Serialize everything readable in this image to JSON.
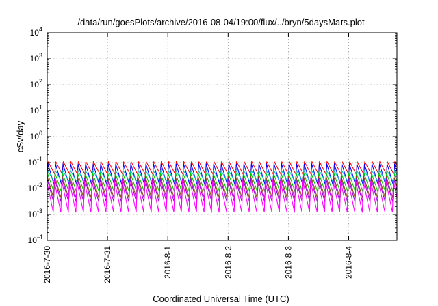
{
  "chart_data": {
    "type": "line",
    "title": "/data/run/goesPlots/archive/2016-08-04/19:00/flux/../bryn/5daysMars.plot",
    "xlabel": "Coordinated Universal Time (UTC)",
    "ylabel": "cSv/day",
    "yscale": "log",
    "ylim_exponents": [
      -4,
      4
    ],
    "y_ticks": [
      {
        "base": "10",
        "exp": "4"
      },
      {
        "base": "10",
        "exp": "3"
      },
      {
        "base": "10",
        "exp": "2"
      },
      {
        "base": "10",
        "exp": "1"
      },
      {
        "base": "10",
        "exp": "0"
      },
      {
        "base": "10",
        "exp": "-1"
      },
      {
        "base": "10",
        "exp": "-2"
      },
      {
        "base": "10",
        "exp": "-3"
      },
      {
        "base": "10",
        "exp": "-4"
      }
    ],
    "x_ticks": [
      "2016-7-30",
      "2016-7-31",
      "2016-8-1",
      "2016-8-2",
      "2016-8-3",
      "2016-8-4"
    ],
    "xlim_days": [
      0,
      5.8
    ],
    "grid": true,
    "legend": "none",
    "cycles_per_day": 8,
    "series": [
      {
        "color": "#ff0000",
        "peak": 0.11,
        "trough": 0.035
      },
      {
        "color": "#0000ff",
        "peak": 0.09,
        "trough": 0.012
      },
      {
        "color": "#00bfbf",
        "peak": 0.05,
        "trough": 0.018
      },
      {
        "color": "#00cc00",
        "peak": 0.04,
        "trough": 0.007
      },
      {
        "color": "#8b4513",
        "peak": 0.03,
        "trough": 0.004
      },
      {
        "color": "#9400d3",
        "peak": 0.025,
        "trough": 0.003
      },
      {
        "color": "#ff00ff",
        "peak": 0.02,
        "trough": 0.0012
      }
    ]
  }
}
